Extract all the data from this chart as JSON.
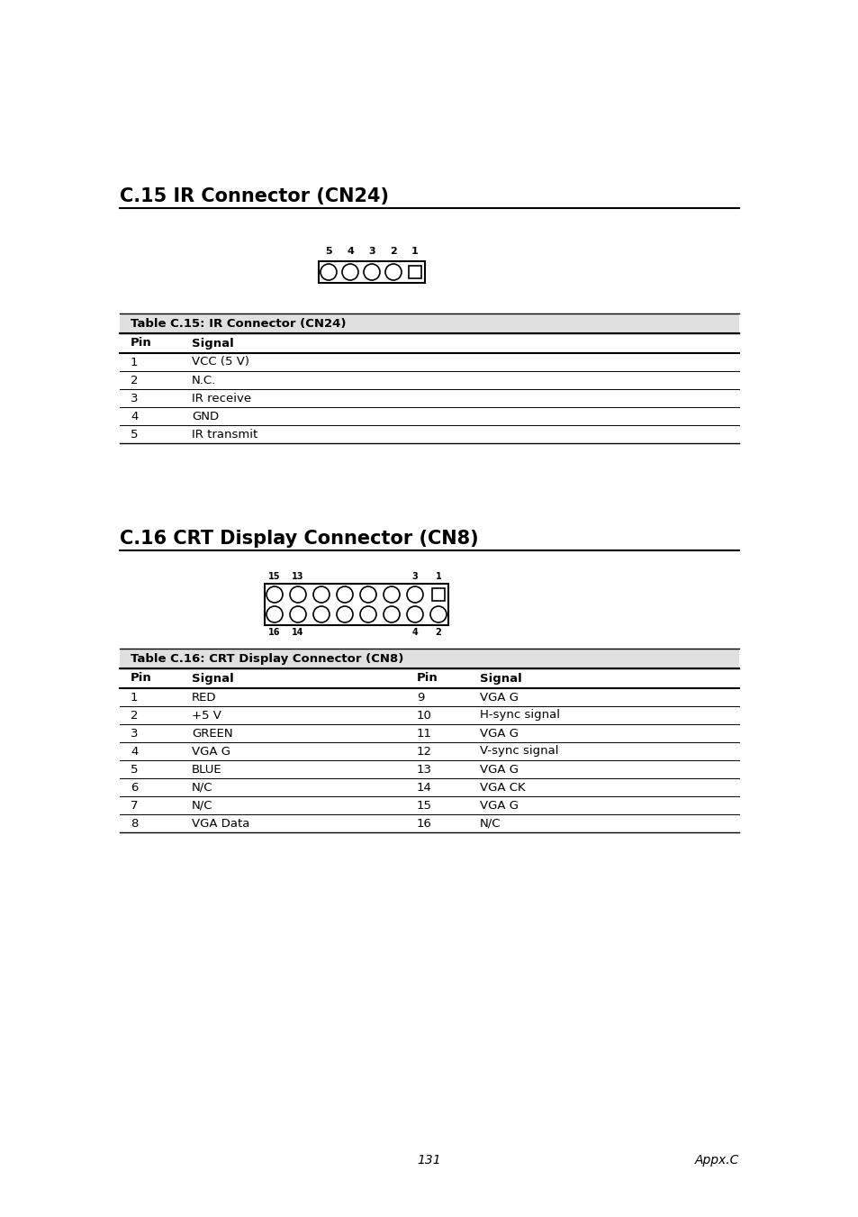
{
  "page_bg": "#ffffff",
  "section1_title": "C.15 IR Connector (CN24)",
  "table1_title": "Table C.15: IR Connector (CN24)",
  "table1_rows": [
    [
      "1",
      "VCC (5 V)"
    ],
    [
      "2",
      "N.C."
    ],
    [
      "3",
      "IR receive"
    ],
    [
      "4",
      "GND"
    ],
    [
      "5",
      "IR transmit"
    ]
  ],
  "section2_title": "C.16 CRT Display Connector (CN8)",
  "table2_title": "Table C.16: CRT Display Connector (CN8)",
  "table2_rows": [
    [
      "1",
      "RED",
      "9",
      "VGA G"
    ],
    [
      "2",
      "+5 V",
      "10",
      "H-sync signal"
    ],
    [
      "3",
      "GREEN",
      "11",
      "VGA G"
    ],
    [
      "4",
      "VGA G",
      "12",
      "V-sync signal"
    ],
    [
      "5",
      "BLUE",
      "13",
      "VGA G"
    ],
    [
      "6",
      "N/C",
      "14",
      "VGA CK"
    ],
    [
      "7",
      "N/C",
      "15",
      "VGA G"
    ],
    [
      "8",
      "VGA Data",
      "16",
      "N/C"
    ]
  ],
  "footer_page": "131",
  "footer_section": "Appx.C"
}
